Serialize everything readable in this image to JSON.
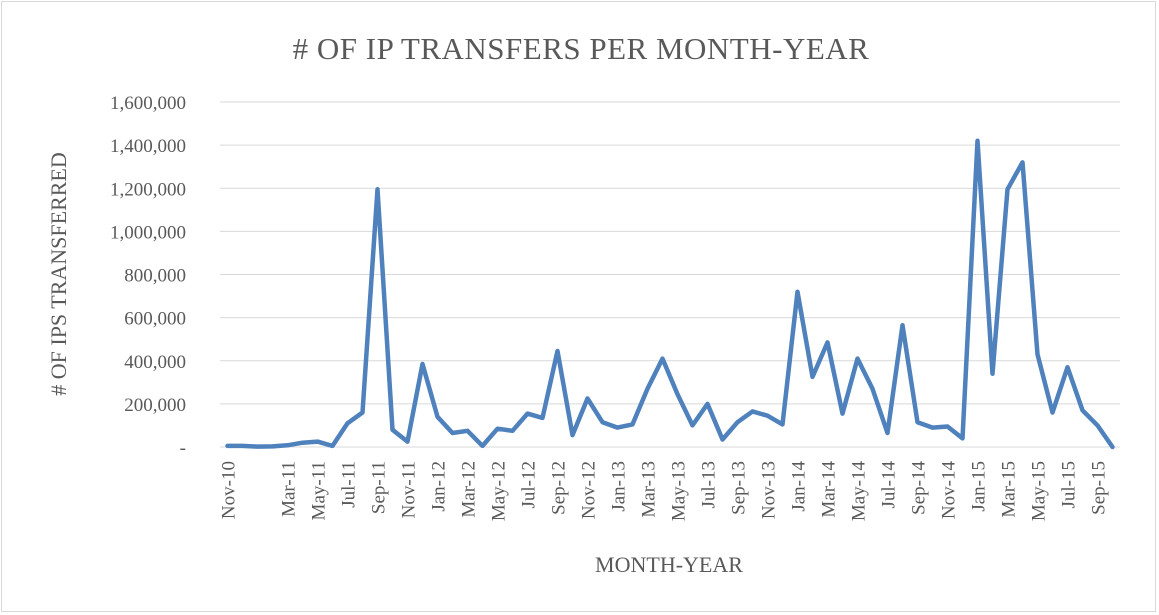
{
  "chart_data": {
    "type": "line",
    "title": "# OF IP TRANSFERS PER MONTH-YEAR",
    "xlabel": "MONTH-YEAR",
    "ylabel": "# OF IPS TRANSFERRED",
    "ylim": [
      0,
      1600000
    ],
    "yticks": [
      0,
      200000,
      400000,
      600000,
      800000,
      1000000,
      1200000,
      1400000,
      1600000
    ],
    "ytick_labels": [
      "-",
      "200,000",
      "400,000",
      "600,000",
      "800,000",
      "1,000,000",
      "1,200,000",
      "1,400,000",
      "1,600,000"
    ],
    "grid": true,
    "legend": "none",
    "colors": {
      "series": "#4f81bd",
      "grid": "#d9d9d9",
      "text": "#595959"
    },
    "x": [
      "Nov-10",
      "Dec-10",
      "Jan-11",
      "Feb-11",
      "Mar-11",
      "Apr-11",
      "May-11",
      "Jun-11",
      "Jul-11",
      "Aug-11",
      "Sep-11",
      "Oct-11",
      "Nov-11",
      "Dec-11",
      "Jan-12",
      "Feb-12",
      "Mar-12",
      "Apr-12",
      "May-12",
      "Jun-12",
      "Jul-12",
      "Aug-12",
      "Sep-12",
      "Oct-12",
      "Nov-12",
      "Dec-12",
      "Jan-13",
      "Feb-13",
      "Mar-13",
      "Apr-13",
      "May-13",
      "Jun-13",
      "Jul-13",
      "Aug-13",
      "Sep-13",
      "Oct-13",
      "Nov-13",
      "Dec-13",
      "Jan-14",
      "Feb-14",
      "Mar-14",
      "Apr-14",
      "May-14",
      "Jun-14",
      "Jul-14",
      "Aug-14",
      "Sep-14",
      "Oct-14",
      "Nov-14",
      "Dec-14",
      "Jan-15",
      "Feb-15",
      "Mar-15",
      "Apr-15",
      "May-15",
      "Jun-15",
      "Jul-15",
      "Aug-15",
      "Sep-15",
      "Oct-15"
    ],
    "x_tick_labels": [
      "Nov-10",
      "Mar-11",
      "May-11",
      "Jul-11",
      "Sep-11",
      "Nov-11",
      "Jan-12",
      "Mar-12",
      "May-12",
      "Jul-12",
      "Sep-12",
      "Nov-12",
      "Jan-13",
      "Mar-13",
      "May-13",
      "Jul-13",
      "Sep-13",
      "Nov-13",
      "Jan-14",
      "Mar-14",
      "May-14",
      "Jul-14",
      "Sep-14",
      "Nov-14",
      "Jan-15",
      "Mar-15",
      "May-15",
      "Jul-15",
      "Sep-15"
    ],
    "series": [
      {
        "values": [
          5000,
          5000,
          2000,
          3000,
          8000,
          20000,
          25000,
          5000,
          110000,
          160000,
          1195000,
          80000,
          25000,
          385000,
          140000,
          65000,
          75000,
          5000,
          85000,
          75000,
          155000,
          135000,
          445000,
          55000,
          225000,
          115000,
          90000,
          105000,
          270000,
          410000,
          245000,
          100000,
          200000,
          35000,
          115000,
          165000,
          145000,
          105000,
          720000,
          325000,
          485000,
          155000,
          410000,
          270000,
          65000,
          565000,
          115000,
          90000,
          95000,
          40000,
          1420000,
          340000,
          1195000,
          1320000,
          430000,
          160000,
          370000,
          170000,
          100000,
          0
        ]
      }
    ]
  }
}
